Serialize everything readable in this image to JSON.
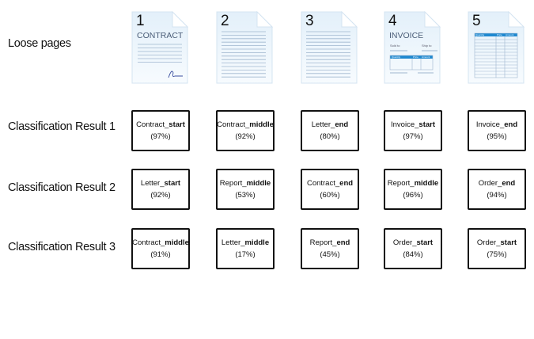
{
  "rows": {
    "loose_pages": "Loose pages",
    "result1": "Classification Result 1",
    "result2": "Classification Result 2",
    "result3": "Classification Result 3"
  },
  "pages": [
    {
      "number": "1",
      "type": "contract",
      "heading": "CONTRACT"
    },
    {
      "number": "2",
      "type": "text"
    },
    {
      "number": "3",
      "type": "text"
    },
    {
      "number": "4",
      "type": "invoice",
      "heading": "INVOICE",
      "sold_to": "Sold to",
      "ship_to": "Ship to",
      "columns": [
        "Quantity",
        "Price",
        "Amount"
      ]
    },
    {
      "number": "5",
      "type": "order",
      "columns": [
        "Quantity",
        "Price",
        "Amount"
      ]
    }
  ],
  "results": [
    [
      {
        "doc": "Contract",
        "part": "start",
        "conf": "(97%)"
      },
      {
        "doc": "Contract",
        "part": "middle",
        "conf": "(92%)"
      },
      {
        "doc": "Letter",
        "part": "end",
        "conf": "(80%)"
      },
      {
        "doc": "Invoice",
        "part": "start",
        "conf": "(97%)"
      },
      {
        "doc": "Invoice",
        "part": "end",
        "conf": "(95%)"
      }
    ],
    [
      {
        "doc": "Letter",
        "part": "start",
        "conf": "(92%)"
      },
      {
        "doc": "Report",
        "part": "middle",
        "conf": "(53%)"
      },
      {
        "doc": "Contract",
        "part": "end",
        "conf": "(60%)"
      },
      {
        "doc": "Report",
        "part": "middle",
        "conf": "(96%)"
      },
      {
        "doc": "Order",
        "part": "end",
        "conf": "(94%)"
      }
    ],
    [
      {
        "doc": "Contract",
        "part": "middle",
        "conf": "(91%)"
      },
      {
        "doc": "Letter",
        "part": "middle",
        "conf": "(17%)"
      },
      {
        "doc": "Report",
        "part": "end",
        "conf": "(45%)"
      },
      {
        "doc": "Order",
        "part": "start",
        "conf": "(84%)"
      },
      {
        "doc": "Order",
        "part": "start",
        "conf": "(75%)"
      }
    ]
  ],
  "colors": {
    "page_fill": "#e3f0fa",
    "line": "#9fb6cf",
    "table_header": "#1e88d0"
  }
}
